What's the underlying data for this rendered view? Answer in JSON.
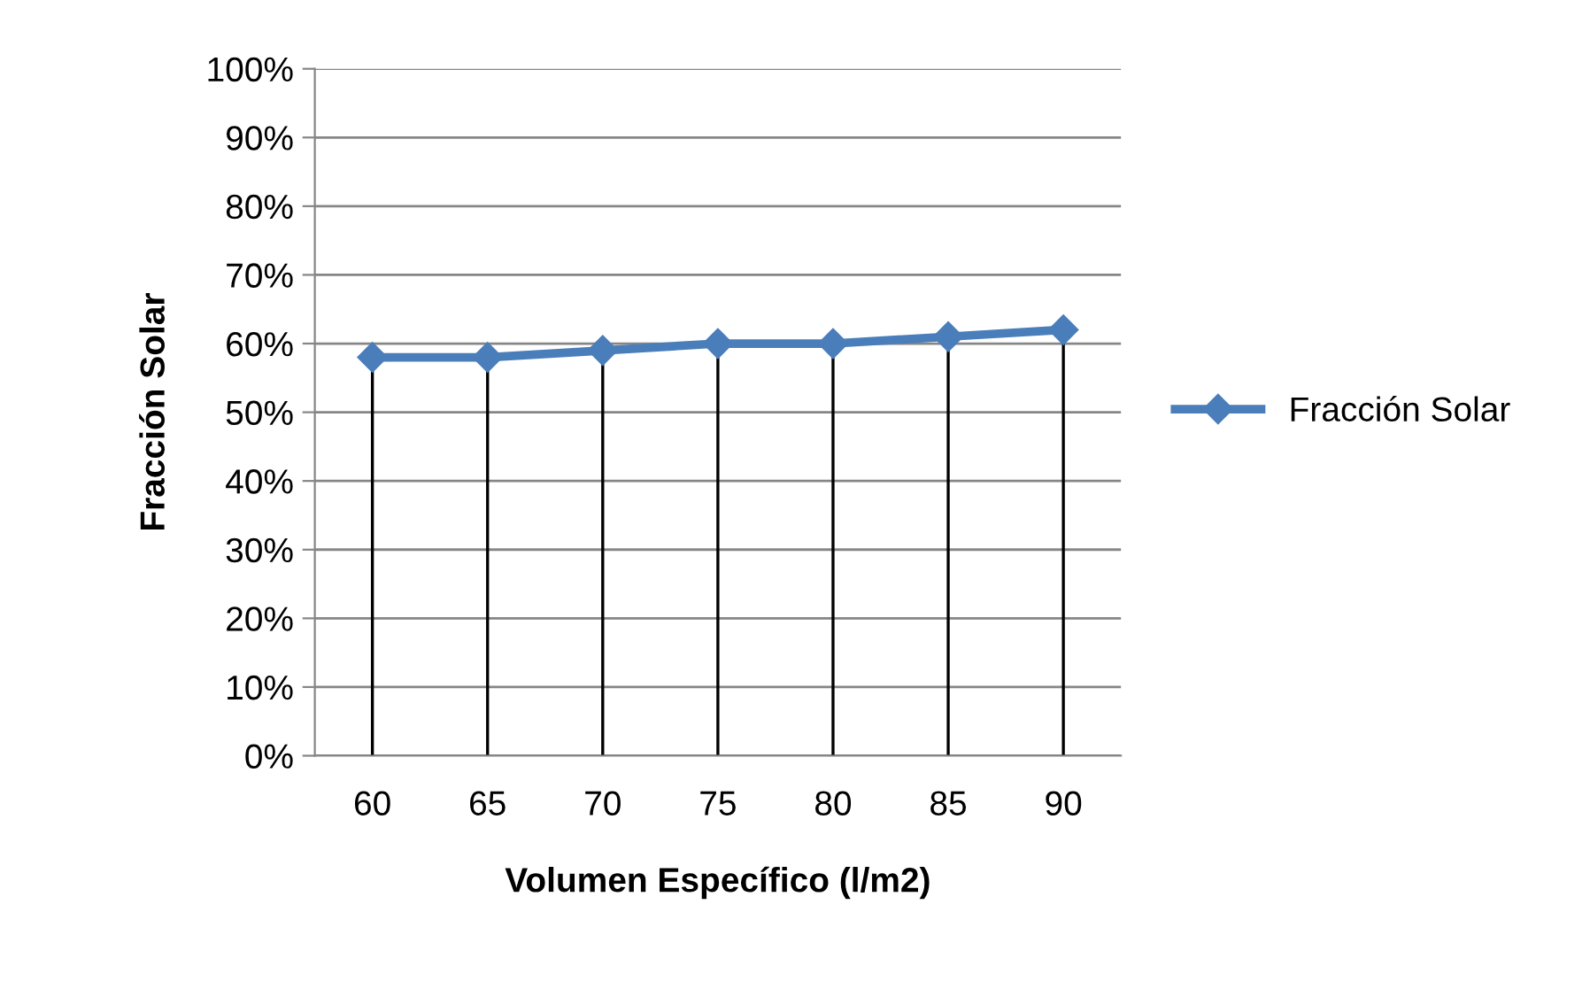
{
  "chart_data": {
    "type": "line",
    "xlabel": "Volumen Específico (l/m2)",
    "ylabel": "Fracción Solar",
    "categories": [
      "60",
      "65",
      "70",
      "75",
      "80",
      "85",
      "90"
    ],
    "series": [
      {
        "name": "Fracción Solar",
        "color": "#4a7ebb",
        "values": [
          58,
          58,
          59,
          60,
          60,
          61,
          62
        ],
        "errors": [
          [
            0,
            58
          ],
          [
            0,
            58
          ],
          [
            0,
            59
          ],
          [
            0,
            60
          ],
          [
            0,
            60
          ],
          [
            0,
            61
          ],
          [
            0,
            62
          ]
        ]
      }
    ],
    "ylim": [
      0,
      100
    ],
    "yticks": [
      {
        "value": 0,
        "label": "0%"
      },
      {
        "value": 10,
        "label": "10%"
      },
      {
        "value": 20,
        "label": "20%"
      },
      {
        "value": 30,
        "label": "30%"
      },
      {
        "value": 40,
        "label": "40%"
      },
      {
        "value": 50,
        "label": "50%"
      },
      {
        "value": 60,
        "label": "60%"
      },
      {
        "value": 70,
        "label": "70%"
      },
      {
        "value": 80,
        "label": "80%"
      },
      {
        "value": 90,
        "label": "90%"
      },
      {
        "value": 100,
        "label": "100%"
      }
    ],
    "grid": "y",
    "legend": "right",
    "marker": "diamond",
    "line_style": "solid"
  }
}
